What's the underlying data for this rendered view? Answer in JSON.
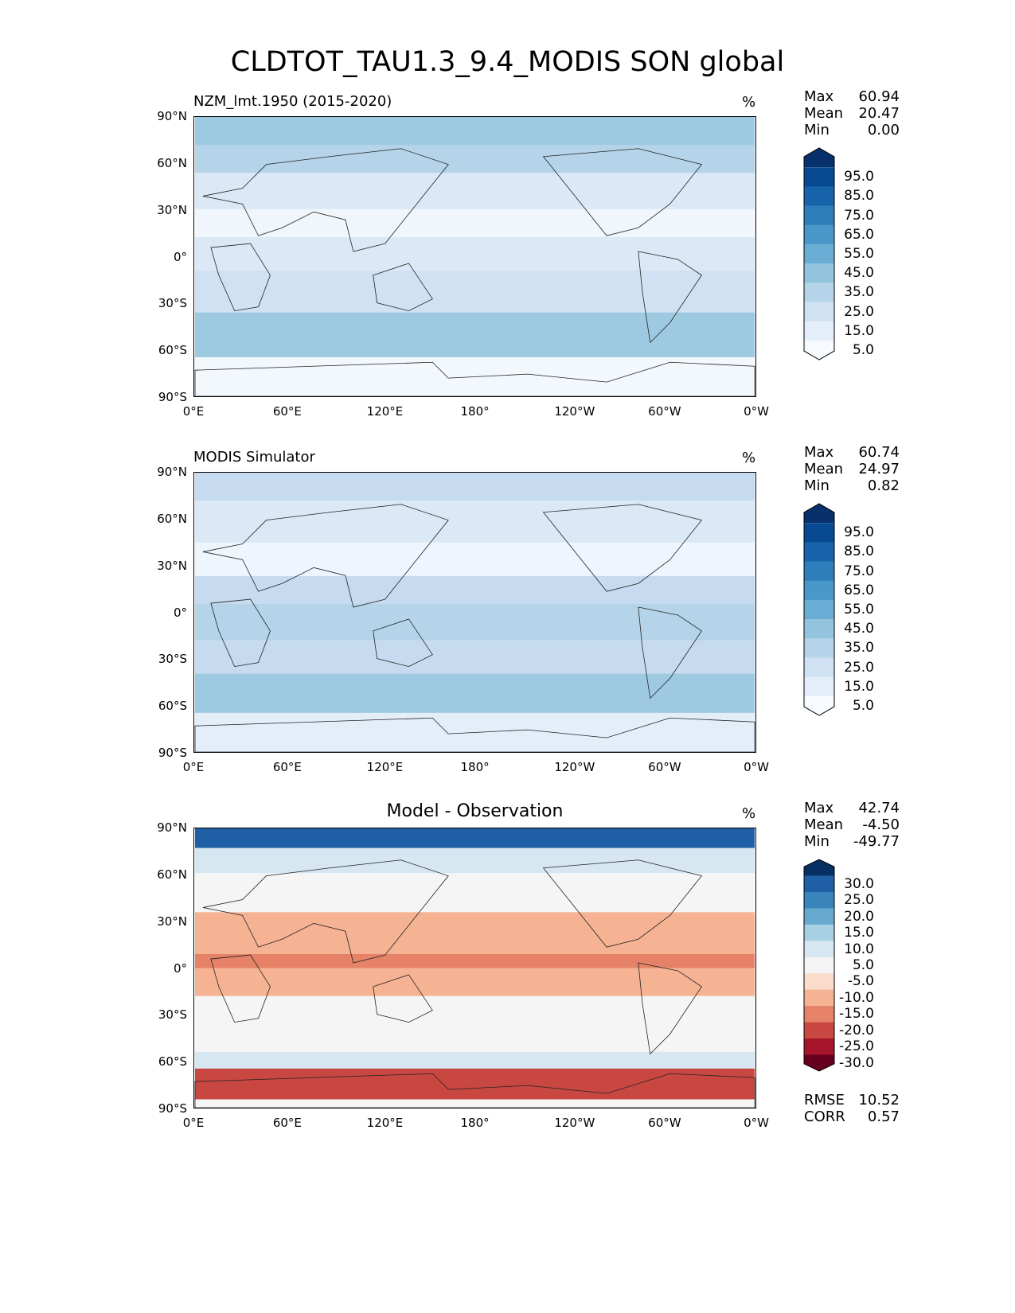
{
  "figure_title": "CLDTOT_TAU1.3_9.4_MODIS SON global",
  "lat_ticks": [
    "90°N",
    "60°N",
    "30°N",
    "0°",
    "30°S",
    "60°S",
    "90°S"
  ],
  "lon_ticks": [
    "0°E",
    "60°E",
    "120°E",
    "180°",
    "120°W",
    "60°W",
    "0°W"
  ],
  "panels": [
    {
      "title": "NZM_lmt.1950 (2015-2020)",
      "units": "%",
      "stats": {
        "max_label": "Max",
        "max": "60.94",
        "mean_label": "Mean",
        "mean": "20.47",
        "min_label": "Min",
        "min": "0.00"
      },
      "colorbar": {
        "colors": [
          "#f7fbff",
          "#e3eef9",
          "#cfe1f2",
          "#b5d4e9",
          "#93c4de",
          "#6aaed6",
          "#4a98c9",
          "#2e7ebc",
          "#1764ab",
          "#084a91",
          "#08306b"
        ],
        "labels": [
          "95.0",
          "85.0",
          "75.0",
          "65.0",
          "55.0",
          "45.0",
          "35.0",
          "25.0",
          "15.0",
          "5.0"
        ]
      }
    },
    {
      "title": "MODIS Simulator",
      "units": "%",
      "stats": {
        "max_label": "Max",
        "max": "60.74",
        "mean_label": "Mean",
        "mean": "24.97",
        "min_label": "Min",
        "min": "0.82"
      },
      "colorbar": {
        "colors": [
          "#f7fbff",
          "#e3eef9",
          "#cfe1f2",
          "#b5d4e9",
          "#93c4de",
          "#6aaed6",
          "#4a98c9",
          "#2e7ebc",
          "#1764ab",
          "#084a91",
          "#08306b"
        ],
        "labels": [
          "95.0",
          "85.0",
          "75.0",
          "65.0",
          "55.0",
          "45.0",
          "35.0",
          "25.0",
          "15.0",
          "5.0"
        ]
      }
    },
    {
      "title": "Model - Observation",
      "units": "%",
      "stats": {
        "max_label": "Max",
        "max": "42.74",
        "mean_label": "Mean",
        "mean": "-4.50",
        "min_label": "Min",
        "min": "-49.77"
      },
      "colorbar": {
        "colors": [
          "#67001f",
          "#a51429",
          "#c94741",
          "#e58267",
          "#f6b394",
          "#fbdbc9",
          "#f5f5f5",
          "#d6e7f1",
          "#a7d0e4",
          "#67a9cf",
          "#3884bb",
          "#1f5fa5",
          "#053061"
        ],
        "labels": [
          "30.0",
          "25.0",
          "20.0",
          "15.0",
          "10.0",
          "5.0",
          "-5.0",
          "-10.0",
          "-15.0",
          "-20.0",
          "-25.0",
          "-30.0"
        ]
      },
      "metrics": {
        "rmse_label": "RMSE",
        "rmse": "10.52",
        "corr_label": "CORR",
        "corr": "0.57"
      }
    }
  ]
}
